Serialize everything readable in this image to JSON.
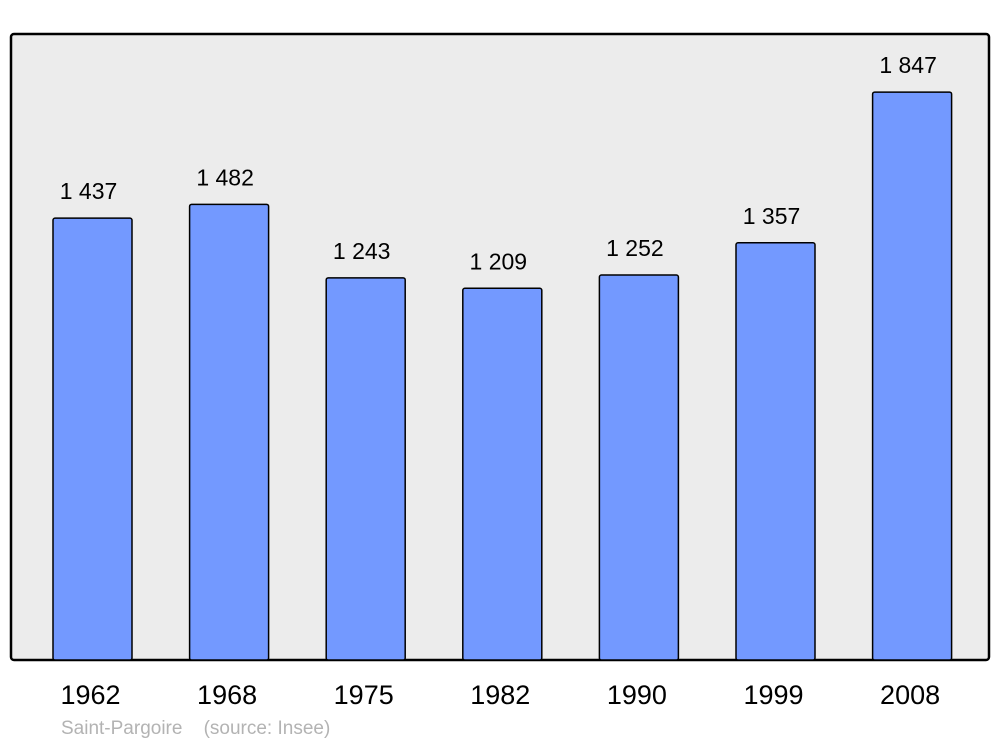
{
  "chart_data": {
    "type": "bar",
    "categories": [
      "1962",
      "1968",
      "1975",
      "1982",
      "1990",
      "1999",
      "2008"
    ],
    "values": [
      1437,
      1482,
      1243,
      1209,
      1252,
      1357,
      1847
    ],
    "value_labels": [
      "1 437",
      "1 482",
      "1 243",
      "1 209",
      "1 252",
      "1 357",
      "1 847"
    ],
    "title": "",
    "xlabel": "",
    "ylabel": "",
    "ylim": [
      0,
      2036
    ],
    "grid": false,
    "colors": {
      "bar": "#7399ff",
      "plot_background": "#ececec",
      "border": "#000000",
      "footer": "#b3b3b3"
    }
  },
  "footer": {
    "place": "Saint-Pargoire",
    "source": "(source: Insee)"
  }
}
